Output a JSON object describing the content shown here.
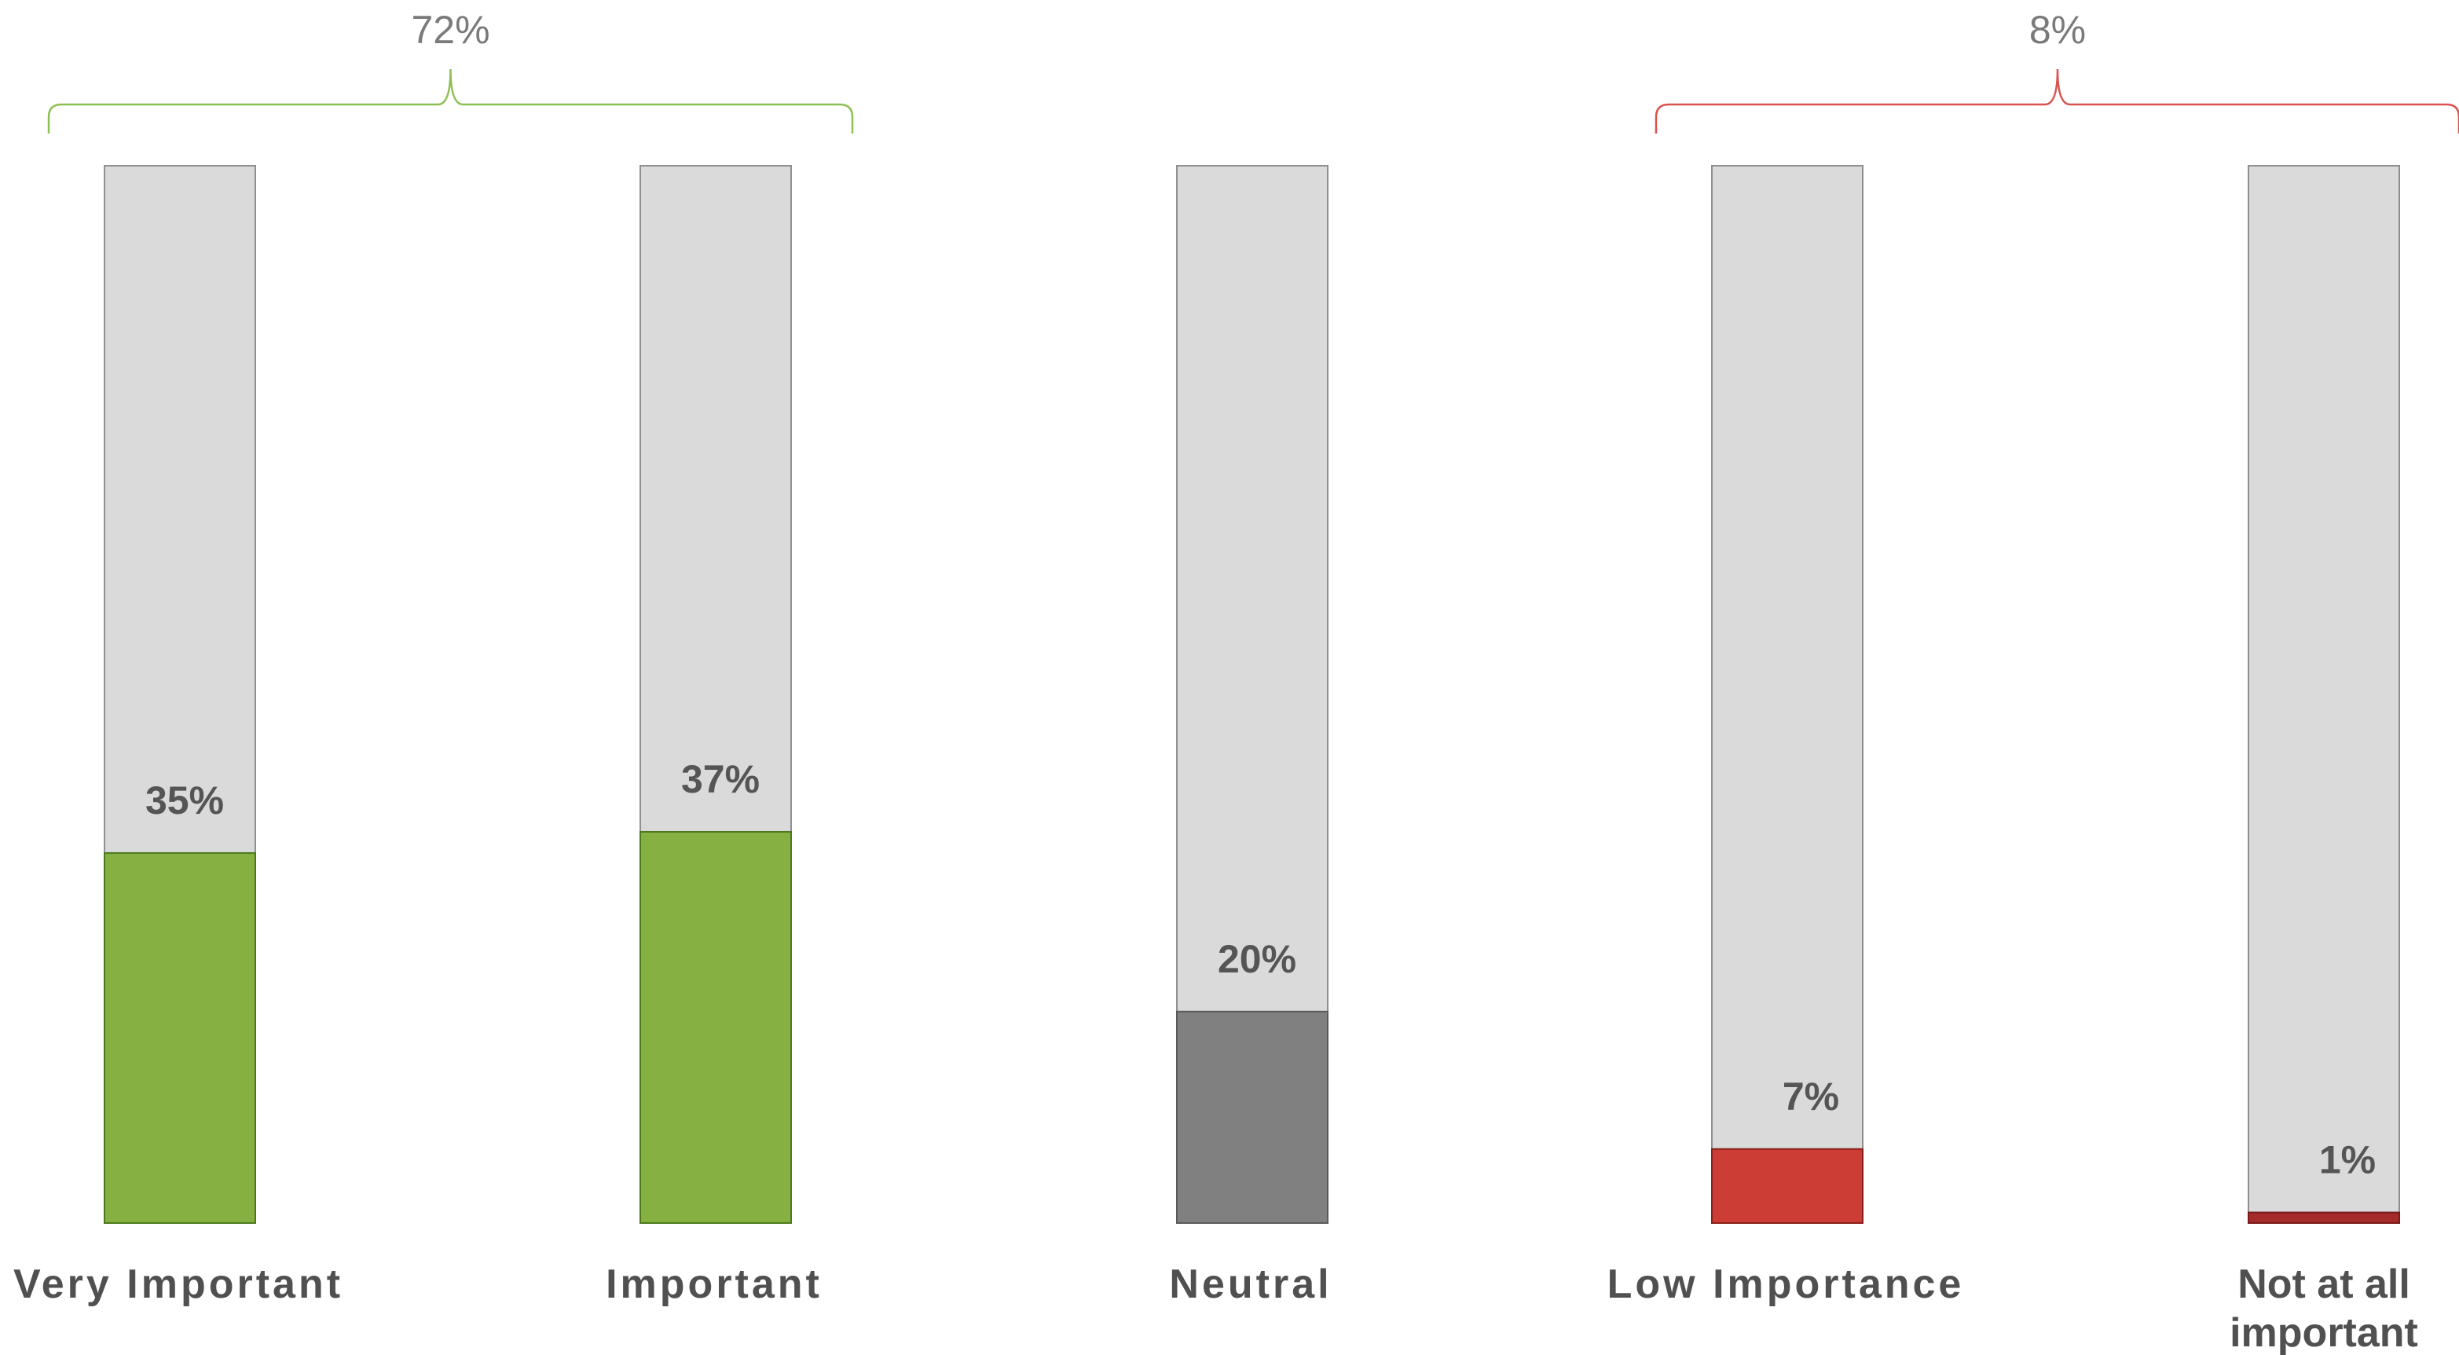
{
  "chart_data": {
    "type": "bar",
    "categories": [
      "Very Important",
      "Important",
      "Neutral",
      "Low Importance",
      "Not at all important"
    ],
    "category_lines": [
      [
        "Very Important"
      ],
      [
        "Important"
      ],
      [
        "Neutral"
      ],
      [
        "Low Importance"
      ],
      [
        "Not at all",
        "important"
      ]
    ],
    "values": [
      35,
      37,
      20,
      7,
      1
    ],
    "value_labels": [
      "35%",
      "37%",
      "20%",
      "7%",
      "1%"
    ],
    "ylim": [
      0,
      100
    ],
    "colors": {
      "track": "#dadada",
      "track_stroke": "#8f8f8f",
      "bars": [
        "#86b041",
        "#86b041",
        "#808080",
        "#cc3d35",
        "#a52a2a"
      ],
      "bar_strokes": [
        "#4a7a1c",
        "#4a7a1c",
        "#5a5a5a",
        "#8a1f1a",
        "#7a1a1a"
      ],
      "group_positive": "#8cc152",
      "group_negative": "#d9534f"
    },
    "groups": [
      {
        "label": "72%",
        "categories": [
          "Very Important",
          "Important"
        ],
        "tone": "positive"
      },
      {
        "label": "8%",
        "categories": [
          "Low Importance",
          "Not at all important"
        ],
        "tone": "negative"
      }
    ],
    "grid": false,
    "legend": "none",
    "title": "",
    "xlabel": "",
    "ylabel": ""
  }
}
